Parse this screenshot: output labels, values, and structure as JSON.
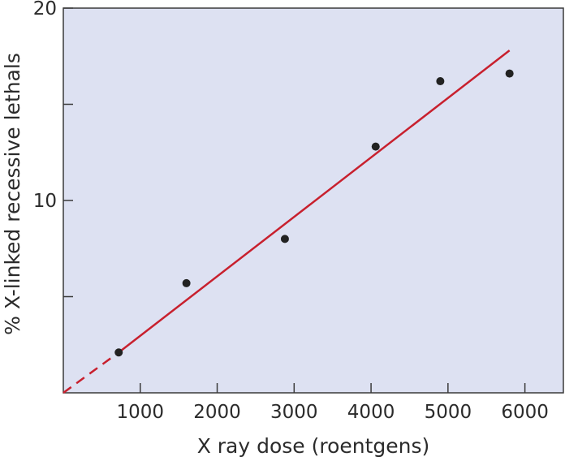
{
  "chart_data": {
    "type": "scatter",
    "xlabel": "X ray dose (roentgens)",
    "ylabel": "% X-linked recessive lethals",
    "xlim": [
      0,
      6500
    ],
    "ylim": [
      0,
      20
    ],
    "x_ticks": [
      1000,
      2000,
      3000,
      4000,
      5000,
      6000
    ],
    "x_tick_labels": [
      "1000",
      "2000",
      "3000",
      "4000",
      "5000",
      "6000"
    ],
    "y_ticks": [
      5,
      10,
      15,
      20
    ],
    "y_tick_labels": [
      "",
      "10",
      "",
      "20"
    ],
    "grid": false,
    "series": [
      {
        "kind": "scatter",
        "x": [
          720,
          1600,
          2880,
          4060,
          4900,
          5800
        ],
        "y": [
          2.1,
          5.7,
          8.0,
          12.8,
          16.2,
          16.6
        ]
      },
      {
        "kind": "fit-line",
        "x": [
          720,
          5800
        ],
        "y": [
          2.1,
          17.8
        ],
        "extrapolated_to": [
          0,
          0
        ]
      }
    ],
    "colors": {
      "plot_background": "#dde1f2",
      "axis": "#3a3a3a",
      "points": "#222222",
      "fit_line": "#c8202e"
    }
  }
}
